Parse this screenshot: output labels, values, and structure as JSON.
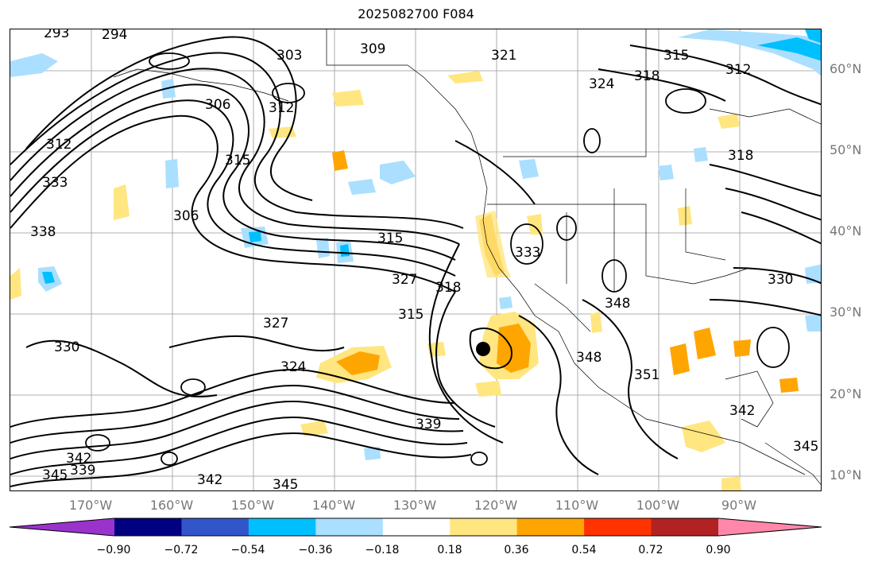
{
  "title": "2025082700 F084",
  "lat_labels": [
    "60°N",
    "50°N",
    "40°N",
    "30°N",
    "20°N",
    "10°N"
  ],
  "lon_labels": [
    "170°W",
    "160°W",
    "150°W",
    "140°W",
    "130°W",
    "120°W",
    "110°W",
    "100°W",
    "90°W"
  ],
  "colorbar": {
    "ticks": [
      "−0.90",
      "−0.72",
      "−0.54",
      "−0.36",
      "−0.18",
      "0.18",
      "0.36",
      "0.54",
      "0.72",
      "0.90"
    ],
    "colors": [
      "#9933cc",
      "#000080",
      "#3355cc",
      "#00bfff",
      "#aadfff",
      "#ffffff",
      "#ffe680",
      "#ffa500",
      "#ff3300",
      "#b22222",
      "#ff88aa"
    ]
  },
  "contour_labels": [
    "294",
    "293",
    "303",
    "309",
    "321",
    "315",
    "312",
    "324",
    "318",
    "306",
    "312",
    "315",
    "312",
    "318",
    "306",
    "333",
    "338",
    "315",
    "327",
    "333",
    "330",
    "327",
    "315",
    "318",
    "324",
    "330",
    "348",
    "351",
    "348",
    "339",
    "342",
    "339",
    "345",
    "342",
    "345",
    "345",
    "342"
  ],
  "contour_color": "#000000",
  "positive_fill": [
    "#ffe680",
    "#ffa500"
  ],
  "negative_fill": [
    "#aadfff",
    "#00bfff"
  ]
}
